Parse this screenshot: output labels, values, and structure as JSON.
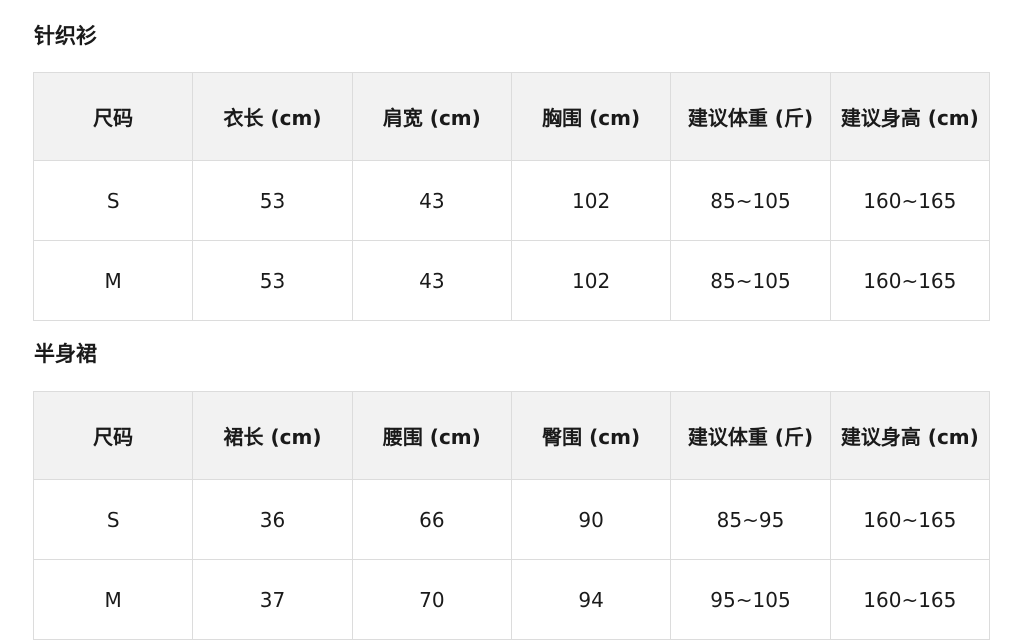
{
  "sections": [
    {
      "title": "针织衫",
      "headers": [
        "尺码",
        "衣长 (cm)",
        "肩宽 (cm)",
        "胸围 (cm)",
        "建议体重 (斤)",
        "建议身高 (cm)"
      ],
      "rows": [
        [
          "S",
          "53",
          "43",
          "102",
          "85~105",
          "160~165"
        ],
        [
          "M",
          "53",
          "43",
          "102",
          "85~105",
          "160~165"
        ]
      ]
    },
    {
      "title": "半身裙",
      "headers": [
        "尺码",
        "裙长 (cm)",
        "腰围 (cm)",
        "臀围 (cm)",
        "建议体重 (斤)",
        "建议身高 (cm)"
      ],
      "rows": [
        [
          "S",
          "36",
          "66",
          "90",
          "85~95",
          "160~165"
        ],
        [
          "M",
          "37",
          "70",
          "94",
          "95~105",
          "160~165"
        ]
      ]
    }
  ],
  "colors": {
    "header_bg": "#f2f2f2",
    "border": "#dcdcdc",
    "text": "#1a1a1a"
  }
}
